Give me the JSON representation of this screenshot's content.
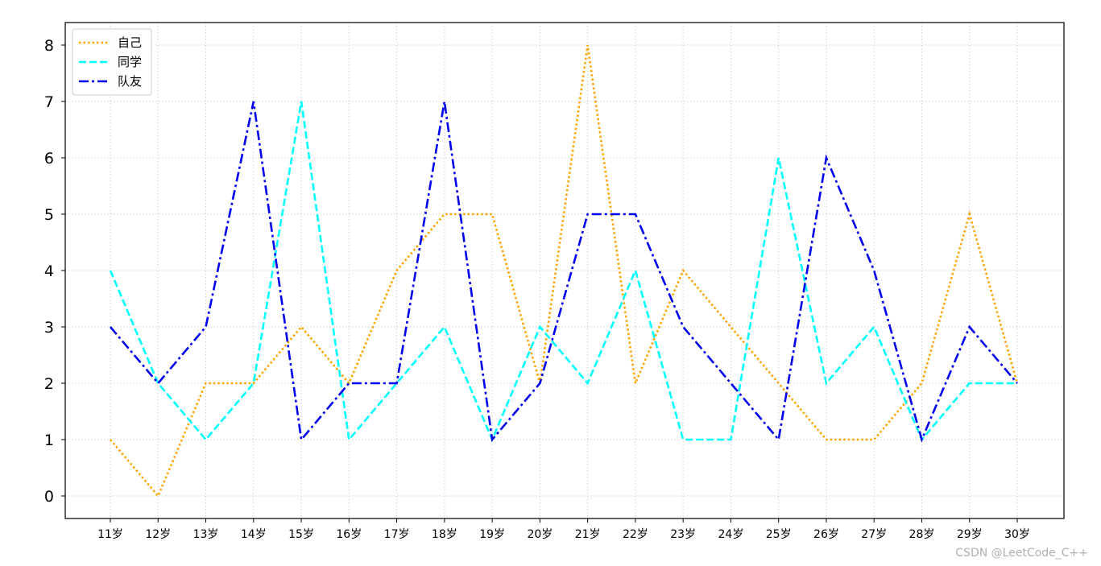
{
  "chart_data": {
    "type": "line",
    "categories": [
      "11岁",
      "12岁",
      "13岁",
      "14岁",
      "15岁",
      "16岁",
      "17岁",
      "18岁",
      "19岁",
      "20岁",
      "21岁",
      "22岁",
      "23岁",
      "24岁",
      "25岁",
      "26岁",
      "27岁",
      "28岁",
      "29岁",
      "30岁"
    ],
    "series": [
      {
        "name": "自己",
        "color": "#FFA500",
        "dash": "dotted",
        "values": [
          1,
          0,
          2,
          2,
          3,
          2,
          4,
          5,
          5,
          2,
          8,
          2,
          4,
          3,
          2,
          1,
          1,
          2,
          5,
          2
        ]
      },
      {
        "name": "同学",
        "color": "#00FFFF",
        "dash": "dashed",
        "values": [
          4,
          2,
          1,
          2,
          7,
          1,
          2,
          3,
          1,
          3,
          2,
          4,
          1,
          1,
          6,
          2,
          3,
          1,
          2,
          2
        ]
      },
      {
        "name": "队友",
        "color": "#0000EE",
        "dash": "dashdot",
        "values": [
          3,
          2,
          3,
          7,
          1,
          2,
          2,
          7,
          1,
          2,
          5,
          5,
          3,
          2,
          1,
          6,
          4,
          1,
          3,
          2
        ]
      }
    ],
    "yticks": [
      0,
      1,
      2,
      3,
      4,
      5,
      6,
      7,
      8
    ],
    "ylim": [
      -0.4,
      8.4
    ],
    "grid": true,
    "legend_position": "upper-left",
    "title": "",
    "xlabel": "",
    "ylabel": ""
  },
  "watermark": "CSDN @LeetCode_C++"
}
